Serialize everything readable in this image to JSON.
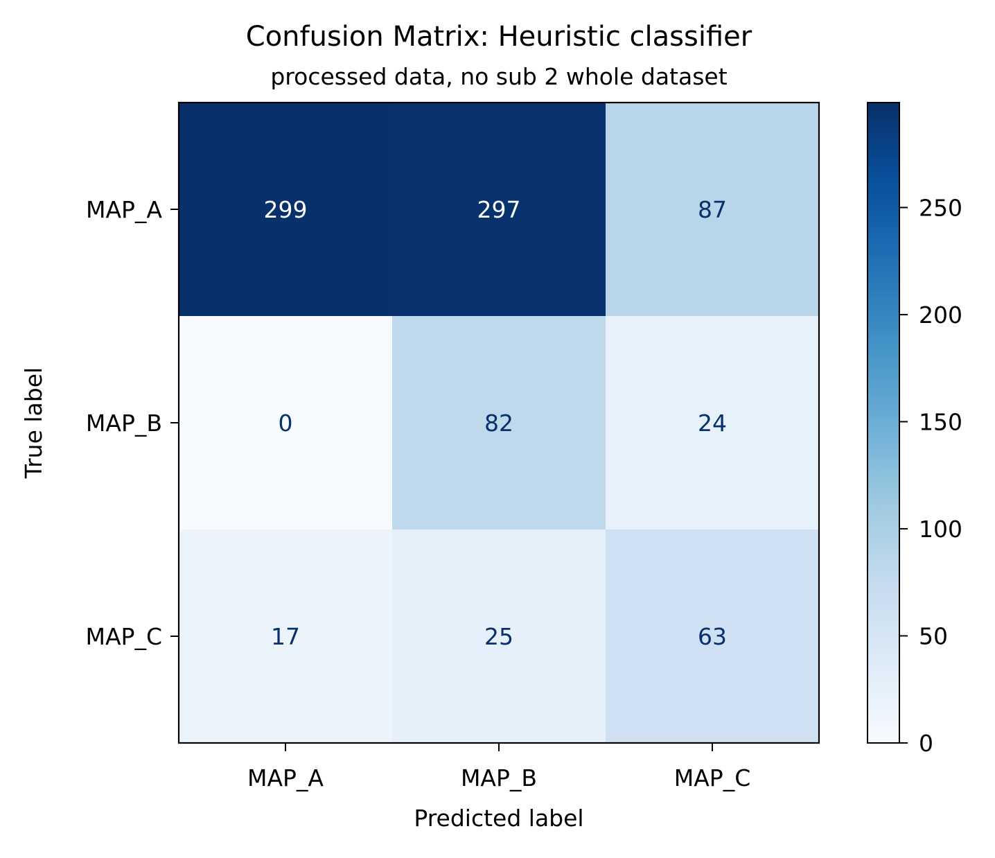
{
  "chart_data": {
    "type": "heatmap",
    "title": "Confusion Matrix: Heuristic classifier",
    "subtitle": "processed data, no sub 2 whole dataset",
    "xlabel": "Predicted label",
    "ylabel": "True label",
    "x_categories": [
      "MAP_A",
      "MAP_B",
      "MAP_C"
    ],
    "y_categories": [
      "MAP_A",
      "MAP_B",
      "MAP_C"
    ],
    "values": [
      [
        299,
        297,
        87
      ],
      [
        0,
        82,
        24
      ],
      [
        17,
        25,
        63
      ]
    ],
    "colormap": "Blues",
    "colorbar": {
      "range": [
        0,
        299
      ],
      "ticks": [
        0,
        50,
        100,
        150,
        200,
        250
      ]
    },
    "text_colors": {
      "dark_cell": "#ffffff",
      "light_cell": "#08306b"
    }
  }
}
